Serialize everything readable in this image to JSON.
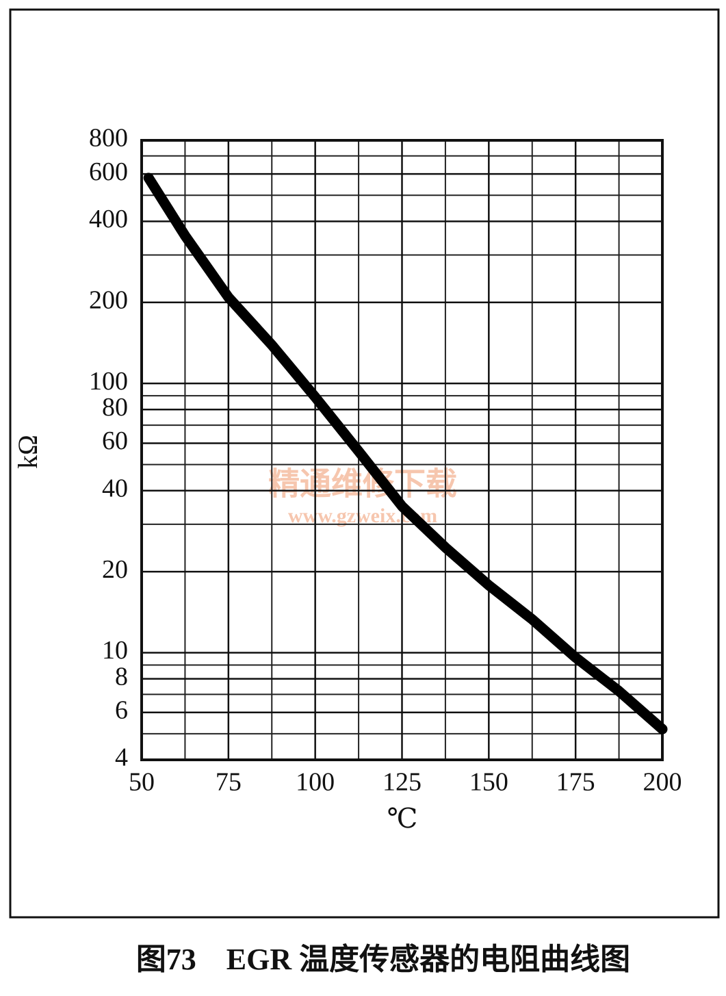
{
  "chart_data": {
    "type": "line",
    "title": "图73　EGR 温度传感器的电阻曲线图",
    "xlabel": "℃",
    "ylabel": "kΩ",
    "watermark": [
      "精通维修下载",
      "www.gzweix.com"
    ],
    "x": [
      52,
      62.5,
      75,
      87.5,
      100,
      112.5,
      125,
      137.5,
      150,
      162.5,
      175,
      187.5,
      200
    ],
    "series": [
      {
        "name": "EGR",
        "color": "#000000",
        "values": [
          580,
          354,
          209,
          139,
          89,
          56,
          35,
          24.6,
          17.8,
          13.3,
          9.6,
          7.2,
          5.2
        ]
      }
    ],
    "xlim": [
      50,
      200
    ],
    "xticks": [
      50,
      75,
      100,
      125,
      150,
      175,
      200
    ],
    "xminor": [
      62.5,
      87.5,
      112.5,
      137.5,
      162.5,
      187.5
    ],
    "ylim": [
      4,
      800
    ],
    "yticks": [
      4,
      6,
      8,
      10,
      20,
      40,
      60,
      80,
      100,
      200,
      400,
      600,
      800
    ],
    "yminor": [
      5,
      7,
      9,
      30,
      50,
      70,
      90,
      300,
      500,
      700
    ],
    "ylog": true,
    "grid": true
  }
}
